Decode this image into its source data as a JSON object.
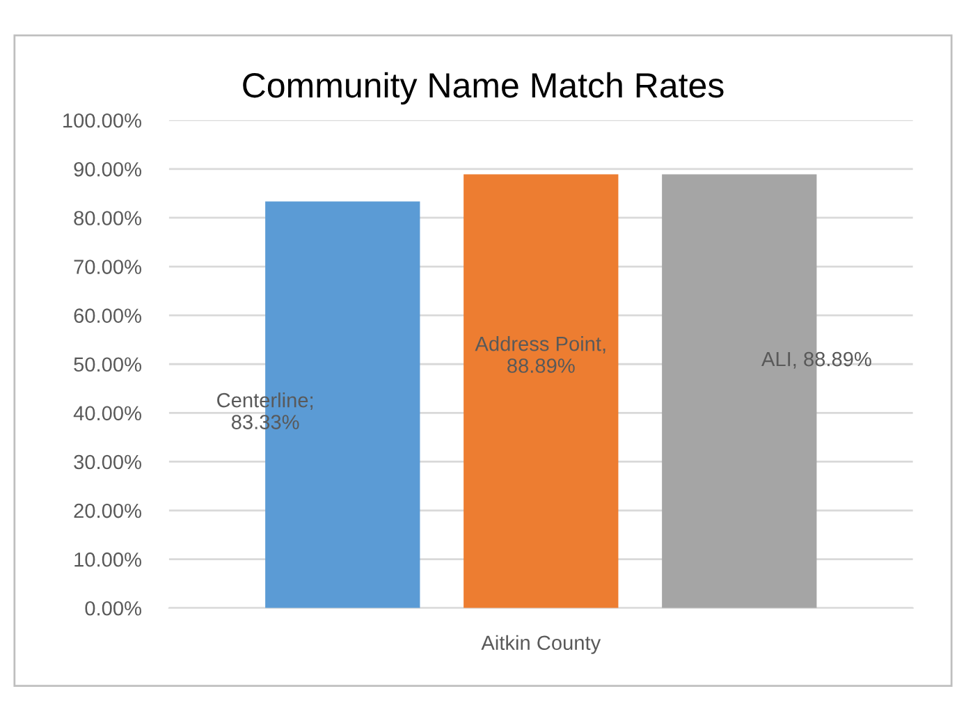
{
  "chart_data": {
    "type": "bar",
    "title": "Community Name Match Rates",
    "categories": [
      "Aitkin County"
    ],
    "series": [
      {
        "color": "#5b9bd5",
        "values": [
          83.33
        ],
        "value_labels": [
          "Centerline;\n83.33%"
        ]
      },
      {
        "color": "#ed7d31",
        "values": [
          88.89
        ],
        "value_labels": [
          "Address Point,\n88.89%"
        ]
      },
      {
        "color": "#a5a5a5",
        "values": [
          88.89
        ],
        "value_labels": [
          "ALI, 88.89%"
        ]
      }
    ],
    "ylim": [
      0,
      100
    ],
    "yticks": [
      {
        "value": 0,
        "label": "0.00%"
      },
      {
        "value": 10,
        "label": "10.00%"
      },
      {
        "value": 20,
        "label": "20.00%"
      },
      {
        "value": 30,
        "label": "30.00%"
      },
      {
        "value": 40,
        "label": "40.00%"
      },
      {
        "value": 50,
        "label": "50.00%"
      },
      {
        "value": 60,
        "label": "60.00%"
      },
      {
        "value": 70,
        "label": "70.00%"
      },
      {
        "value": 80,
        "label": "80.00%"
      },
      {
        "value": 90,
        "label": "90.00%"
      },
      {
        "value": 100,
        "label": "100.00%"
      }
    ],
    "grid": "y",
    "legend": false
  }
}
